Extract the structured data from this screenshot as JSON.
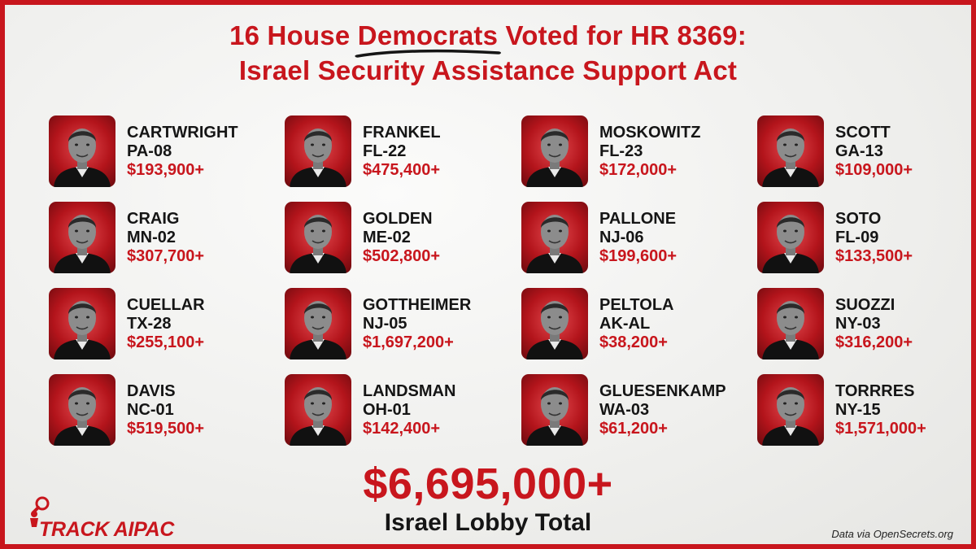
{
  "title": {
    "line1_before": "16 House ",
    "line1_highlight": "Democrats",
    "line1_after": " Voted for HR 8369:",
    "line2": "Israel Security Assistance Support Act"
  },
  "colors": {
    "accent": "#c8161d",
    "text": "#151515",
    "background": "#f0f0ee"
  },
  "representatives": [
    {
      "name": "CARTWRIGHT",
      "district": "PA-08",
      "amount": "$193,900+"
    },
    {
      "name": "FRANKEL",
      "district": "FL-22",
      "amount": "$475,400+"
    },
    {
      "name": "MOSKOWITZ",
      "district": "FL-23",
      "amount": "$172,000+"
    },
    {
      "name": "SCOTT",
      "district": "GA-13",
      "amount": "$109,000+"
    },
    {
      "name": "CRAIG",
      "district": "MN-02",
      "amount": "$307,700+"
    },
    {
      "name": "GOLDEN",
      "district": "ME-02",
      "amount": "$502,800+"
    },
    {
      "name": "PALLONE",
      "district": "NJ-06",
      "amount": "$199,600+"
    },
    {
      "name": "SOTO",
      "district": "FL-09",
      "amount": "$133,500+"
    },
    {
      "name": "CUELLAR",
      "district": "TX-28",
      "amount": "$255,100+"
    },
    {
      "name": "GOTTHEIMER",
      "district": "NJ-05",
      "amount": "$1,697,200+"
    },
    {
      "name": "PELTOLA",
      "district": "AK-AL",
      "amount": "$38,200+"
    },
    {
      "name": "SUOZZI",
      "district": "NY-03",
      "amount": "$316,200+"
    },
    {
      "name": "DAVIS",
      "district": "NC-01",
      "amount": "$519,500+"
    },
    {
      "name": "LANDSMAN",
      "district": "OH-01",
      "amount": "$142,400+"
    },
    {
      "name": "GLUESENKAMP",
      "district": "WA-03",
      "amount": "$61,200+"
    },
    {
      "name": "TORRRES",
      "district": "NY-15",
      "amount": "$1,571,000+"
    }
  ],
  "total": {
    "amount": "$6,695,000+",
    "label": "Israel Lobby Total"
  },
  "logo": {
    "text": "TRACK AIPAC",
    "icon": "person-magnifier-icon"
  },
  "source": "Data via OpenSecrets.org"
}
